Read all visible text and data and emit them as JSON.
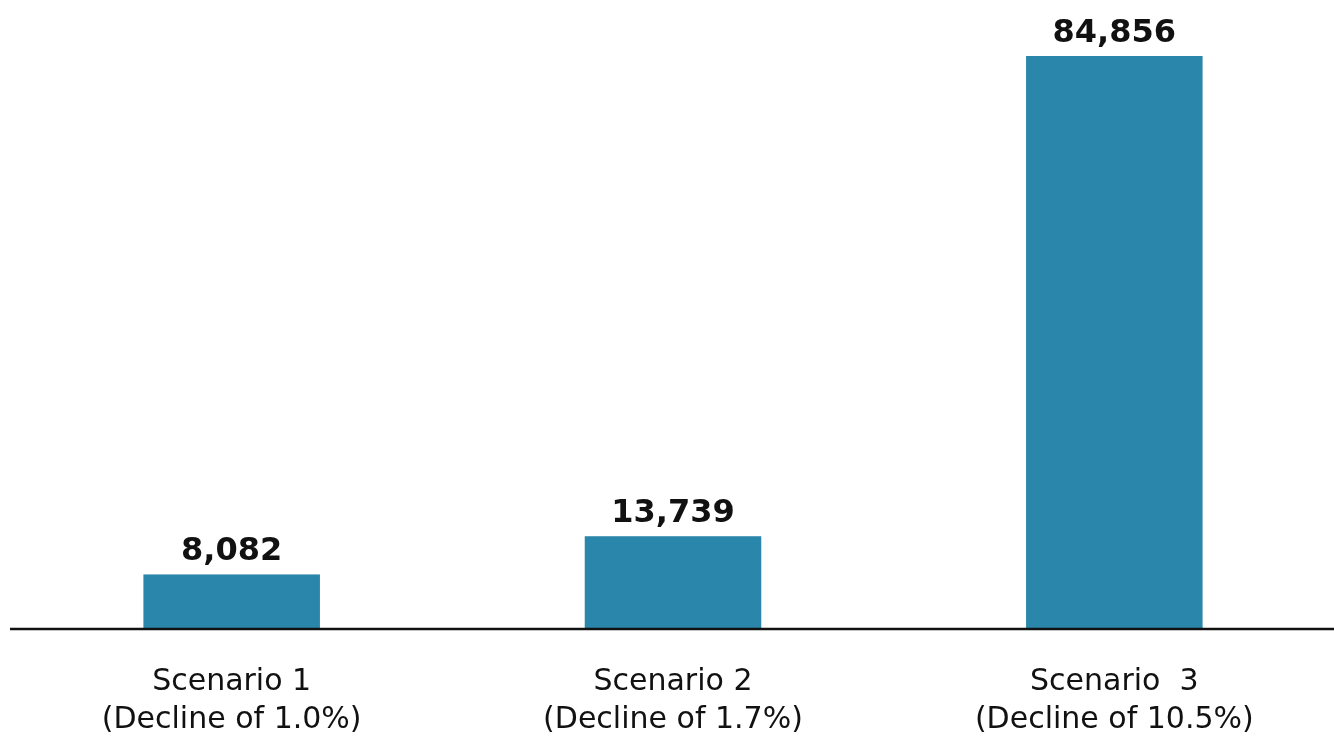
{
  "chart_data": {
    "type": "bar",
    "categories": [
      "Scenario 1\n(Decline of 1.0%)",
      "Scenario 2\n(Decline of 1.7%)",
      "Scenario  3\n(Decline of 10.5%)"
    ],
    "values": [
      8082,
      13739,
      84856
    ],
    "value_labels": [
      "8,082",
      "13,739",
      "84,856"
    ],
    "color": "#2a86aa"
  }
}
